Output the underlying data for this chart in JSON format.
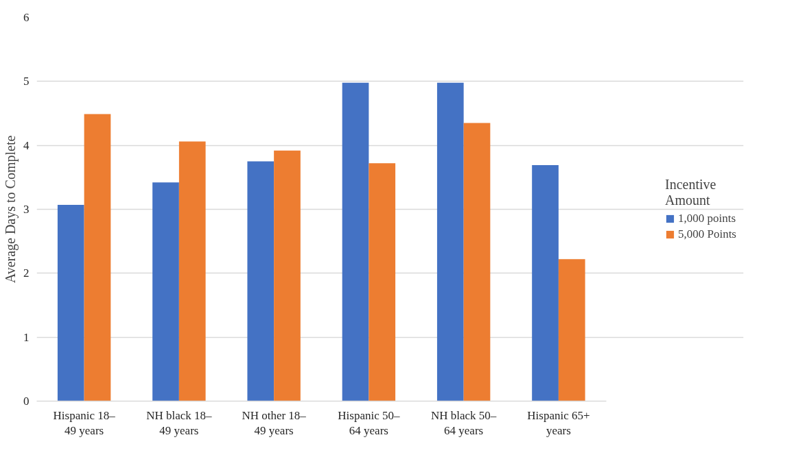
{
  "chart_data": {
    "type": "bar",
    "ylabel": "Average Days to Complete",
    "legend_title": "Incentive Amount",
    "categories": [
      "Hispanic 18–49 years",
      "NH black 18–49 years",
      "NH other 18–49 years",
      "Hispanic 50–64 years",
      "NH black 50–64 years",
      "Hispanic 65+ years"
    ],
    "series": [
      {
        "name": "1,000 points",
        "color": "#4472c4",
        "values": [
          3.07,
          3.42,
          3.75,
          4.98,
          4.98,
          3.69
        ]
      },
      {
        "name": "5,000 Points",
        "color": "#ed7d31",
        "values": [
          4.49,
          4.06,
          3.92,
          3.72,
          4.35,
          2.22
        ]
      }
    ],
    "ylim": [
      0,
      6
    ],
    "yticks": [
      0,
      1,
      2,
      3,
      4,
      5,
      6
    ],
    "grid": "y",
    "legend": "right"
  }
}
